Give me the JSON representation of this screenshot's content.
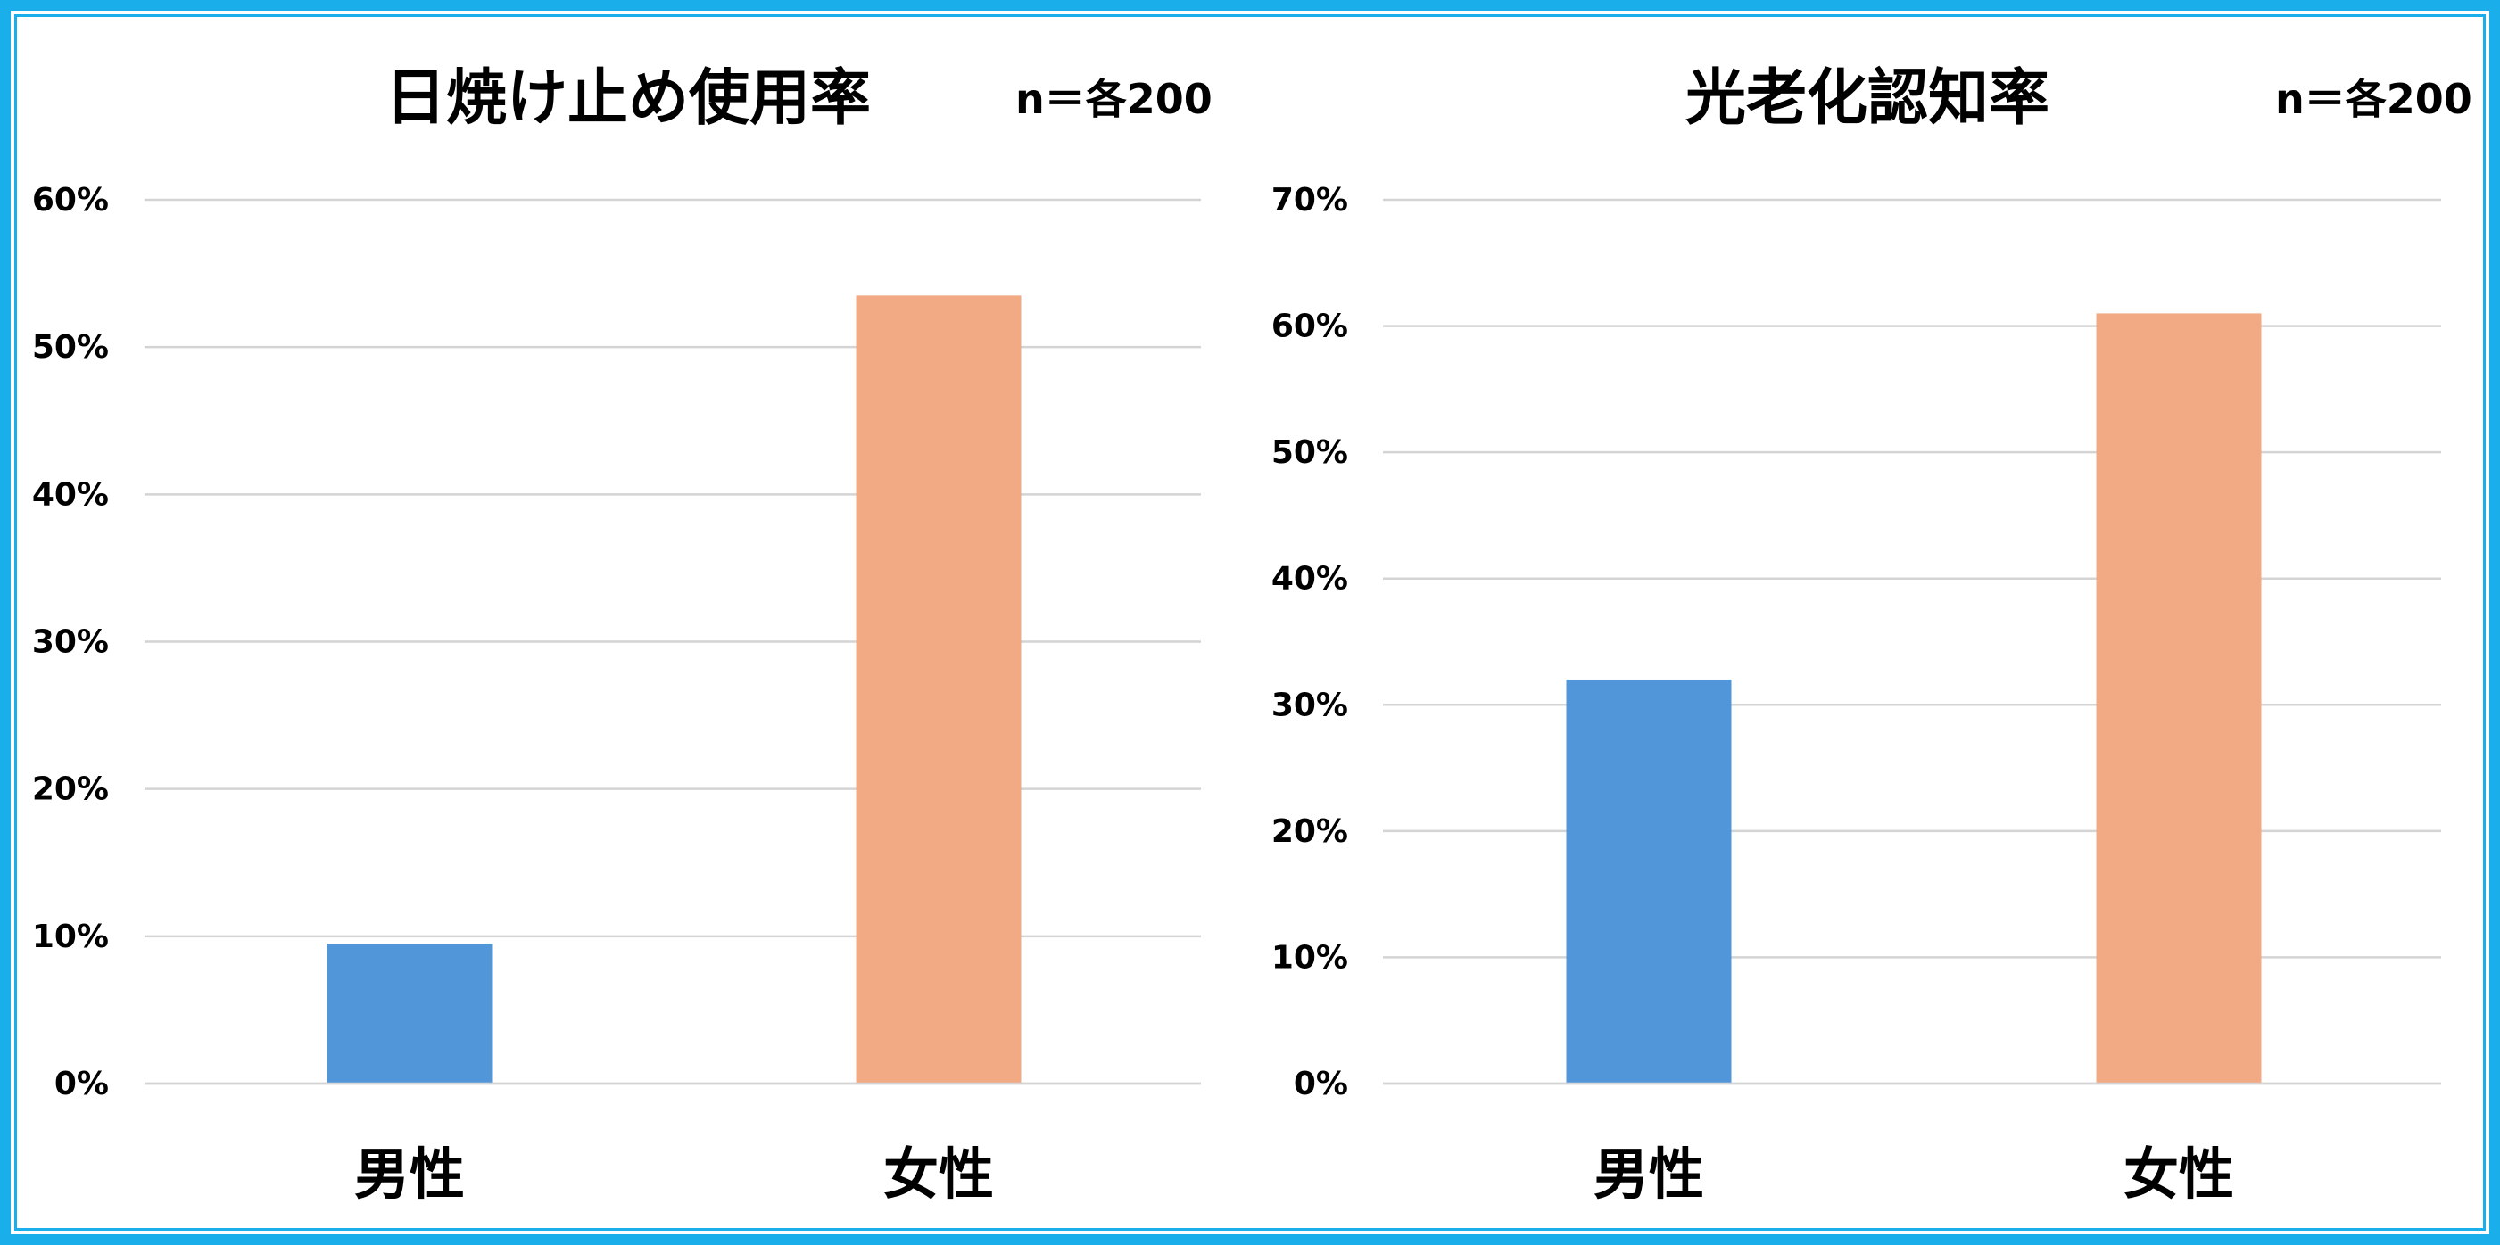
{
  "chart_data": [
    {
      "type": "bar",
      "title": "日焼け止め使用率",
      "annotation": "n＝各200",
      "categories": [
        "男性",
        "女性"
      ],
      "values": [
        9.5,
        53.5
      ],
      "ylim": [
        0,
        60
      ],
      "yticks": [
        0,
        10,
        20,
        30,
        40,
        50,
        60
      ],
      "ytick_labels": [
        "0%",
        "10%",
        "20%",
        "30%",
        "40%",
        "50%",
        "60%"
      ],
      "bar_colors": [
        "#5196d9",
        "#f1aa84"
      ],
      "grid": true,
      "legend": "none"
    },
    {
      "type": "bar",
      "title": "光老化認知率",
      "annotation": "n＝各200",
      "categories": [
        "男性",
        "女性"
      ],
      "values": [
        32,
        61
      ],
      "ylim": [
        0,
        70
      ],
      "yticks": [
        0,
        10,
        20,
        30,
        40,
        50,
        60,
        70
      ],
      "ytick_labels": [
        "0%",
        "10%",
        "20%",
        "30%",
        "40%",
        "50%",
        "60%",
        "70%"
      ],
      "bar_colors": [
        "#5196d9",
        "#f1aa84"
      ],
      "grid": true,
      "legend": "none"
    }
  ],
  "frame": {
    "border_color": "#1aaeeb"
  }
}
